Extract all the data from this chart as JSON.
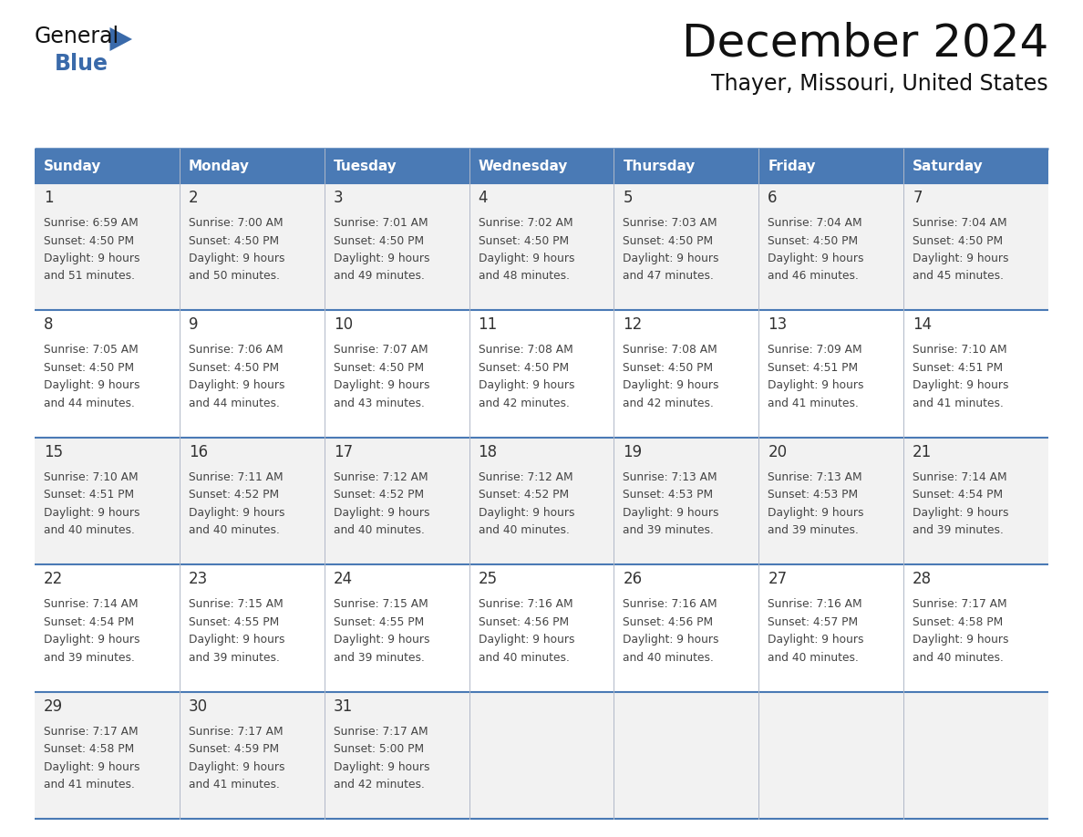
{
  "title": "December 2024",
  "subtitle": "Thayer, Missouri, United States",
  "days_of_week": [
    "Sunday",
    "Monday",
    "Tuesday",
    "Wednesday",
    "Thursday",
    "Friday",
    "Saturday"
  ],
  "header_bg_color": "#4a7ab5",
  "header_text_color": "#ffffff",
  "row_bg_even": "#f2f2f2",
  "row_bg_odd": "#ffffff",
  "day_num_color": "#333333",
  "cell_text_color": "#444444",
  "border_color": "#4a7ab5",
  "inner_border_color": "#b0b8c8",
  "title_color": "#111111",
  "subtitle_color": "#111111",
  "logo_general_color": "#111111",
  "logo_blue_color": "#3a6aaa",
  "logo_triangle_color": "#3a6aaa",
  "calendar_data": [
    [
      {
        "day": 1,
        "sunrise": "6:59 AM",
        "sunset": "4:50 PM",
        "daylight": "9 hours and 51 minutes."
      },
      {
        "day": 2,
        "sunrise": "7:00 AM",
        "sunset": "4:50 PM",
        "daylight": "9 hours and 50 minutes."
      },
      {
        "day": 3,
        "sunrise": "7:01 AM",
        "sunset": "4:50 PM",
        "daylight": "9 hours and 49 minutes."
      },
      {
        "day": 4,
        "sunrise": "7:02 AM",
        "sunset": "4:50 PM",
        "daylight": "9 hours and 48 minutes."
      },
      {
        "day": 5,
        "sunrise": "7:03 AM",
        "sunset": "4:50 PM",
        "daylight": "9 hours and 47 minutes."
      },
      {
        "day": 6,
        "sunrise": "7:04 AM",
        "sunset": "4:50 PM",
        "daylight": "9 hours and 46 minutes."
      },
      {
        "day": 7,
        "sunrise": "7:04 AM",
        "sunset": "4:50 PM",
        "daylight": "9 hours and 45 minutes."
      }
    ],
    [
      {
        "day": 8,
        "sunrise": "7:05 AM",
        "sunset": "4:50 PM",
        "daylight": "9 hours and 44 minutes."
      },
      {
        "day": 9,
        "sunrise": "7:06 AM",
        "sunset": "4:50 PM",
        "daylight": "9 hours and 44 minutes."
      },
      {
        "day": 10,
        "sunrise": "7:07 AM",
        "sunset": "4:50 PM",
        "daylight": "9 hours and 43 minutes."
      },
      {
        "day": 11,
        "sunrise": "7:08 AM",
        "sunset": "4:50 PM",
        "daylight": "9 hours and 42 minutes."
      },
      {
        "day": 12,
        "sunrise": "7:08 AM",
        "sunset": "4:50 PM",
        "daylight": "9 hours and 42 minutes."
      },
      {
        "day": 13,
        "sunrise": "7:09 AM",
        "sunset": "4:51 PM",
        "daylight": "9 hours and 41 minutes."
      },
      {
        "day": 14,
        "sunrise": "7:10 AM",
        "sunset": "4:51 PM",
        "daylight": "9 hours and 41 minutes."
      }
    ],
    [
      {
        "day": 15,
        "sunrise": "7:10 AM",
        "sunset": "4:51 PM",
        "daylight": "9 hours and 40 minutes."
      },
      {
        "day": 16,
        "sunrise": "7:11 AM",
        "sunset": "4:52 PM",
        "daylight": "9 hours and 40 minutes."
      },
      {
        "day": 17,
        "sunrise": "7:12 AM",
        "sunset": "4:52 PM",
        "daylight": "9 hours and 40 minutes."
      },
      {
        "day": 18,
        "sunrise": "7:12 AM",
        "sunset": "4:52 PM",
        "daylight": "9 hours and 40 minutes."
      },
      {
        "day": 19,
        "sunrise": "7:13 AM",
        "sunset": "4:53 PM",
        "daylight": "9 hours and 39 minutes."
      },
      {
        "day": 20,
        "sunrise": "7:13 AM",
        "sunset": "4:53 PM",
        "daylight": "9 hours and 39 minutes."
      },
      {
        "day": 21,
        "sunrise": "7:14 AM",
        "sunset": "4:54 PM",
        "daylight": "9 hours and 39 minutes."
      }
    ],
    [
      {
        "day": 22,
        "sunrise": "7:14 AM",
        "sunset": "4:54 PM",
        "daylight": "9 hours and 39 minutes."
      },
      {
        "day": 23,
        "sunrise": "7:15 AM",
        "sunset": "4:55 PM",
        "daylight": "9 hours and 39 minutes."
      },
      {
        "day": 24,
        "sunrise": "7:15 AM",
        "sunset": "4:55 PM",
        "daylight": "9 hours and 39 minutes."
      },
      {
        "day": 25,
        "sunrise": "7:16 AM",
        "sunset": "4:56 PM",
        "daylight": "9 hours and 40 minutes."
      },
      {
        "day": 26,
        "sunrise": "7:16 AM",
        "sunset": "4:56 PM",
        "daylight": "9 hours and 40 minutes."
      },
      {
        "day": 27,
        "sunrise": "7:16 AM",
        "sunset": "4:57 PM",
        "daylight": "9 hours and 40 minutes."
      },
      {
        "day": 28,
        "sunrise": "7:17 AM",
        "sunset": "4:58 PM",
        "daylight": "9 hours and 40 minutes."
      }
    ],
    [
      {
        "day": 29,
        "sunrise": "7:17 AM",
        "sunset": "4:58 PM",
        "daylight": "9 hours and 41 minutes."
      },
      {
        "day": 30,
        "sunrise": "7:17 AM",
        "sunset": "4:59 PM",
        "daylight": "9 hours and 41 minutes."
      },
      {
        "day": 31,
        "sunrise": "7:17 AM",
        "sunset": "5:00 PM",
        "daylight": "9 hours and 42 minutes."
      },
      null,
      null,
      null,
      null
    ]
  ]
}
